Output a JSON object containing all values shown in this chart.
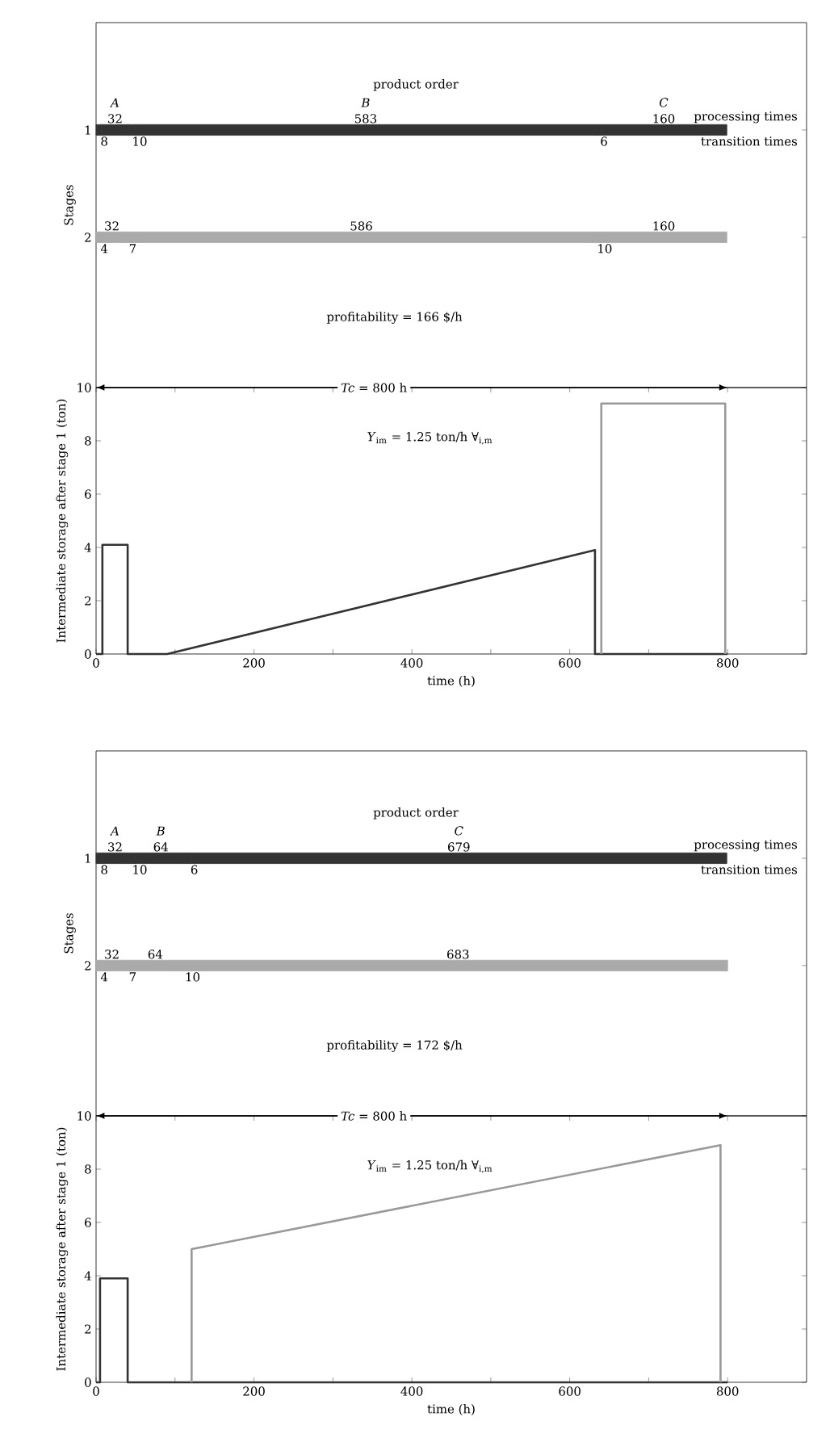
{
  "chart_data": [
    {
      "type": "bar",
      "orientation": "horizontal",
      "stacked": true,
      "categories": [
        "1",
        "2"
      ],
      "ylabel": "Stages",
      "xlim": [
        0,
        900
      ],
      "tick_labels": "y",
      "data_labels": true,
      "series": [
        {
          "values": [
            8,
            4
          ],
          "colors": [
            "#333333",
            "#aaaaaa"
          ]
        },
        {
          "name": "A",
          "values": [
            32,
            32
          ],
          "colors": [
            "#333333",
            "#aaaaaa"
          ]
        },
        {
          "values": [
            10,
            7
          ],
          "colors": [
            "#333333",
            "#aaaaaa"
          ]
        },
        {
          "name": "B",
          "values": [
            583,
            586
          ],
          "colors": [
            "#333333",
            "#aaaaaa"
          ]
        },
        {
          "values": [
            6,
            10
          ],
          "colors": [
            "#333333",
            "#aaaaaa"
          ]
        },
        {
          "name": "C",
          "values": [
            160,
            160
          ],
          "colors": [
            "#333333",
            "#aaaaaa"
          ]
        }
      ],
      "annotations": [
        "product order",
        "processing times",
        "transition times",
        "profitability = 166 $/h"
      ]
    },
    {
      "type": "line",
      "xlabel": "time (h)",
      "ylabel": "Intermediate storage after stage 1 (ton)",
      "xlim": [
        0,
        900
      ],
      "xticks": [
        0,
        {
          "value": 100,
          "label": null
        },
        200,
        {
          "value": 300,
          "label": null
        },
        400,
        {
          "value": 500,
          "label": null
        },
        600,
        {
          "value": 700,
          "label": null
        },
        800
      ],
      "ylim": [
        0,
        10
      ],
      "yticks": [
        0,
        2,
        4,
        6,
        8,
        10
      ],
      "series": [
        {
          "color": "#333333",
          "x": [
            0,
            8,
            8,
            40,
            40,
            90,
            632,
            632,
            800
          ],
          "values": [
            0,
            0,
            4.1,
            4.1,
            0,
            0,
            3.9,
            0,
            0
          ]
        },
        {
          "color": "#999999",
          "x": [
            640,
            640,
            797,
            797
          ],
          "values": [
            0,
            9.4,
            9.4,
            0
          ]
        }
      ],
      "annotations": [
        "*Tc* = 800 h",
        "*Y*$_{im}$ = 1.25 ton/h  ∀$_{i,m}$"
      ]
    },
    {
      "type": "bar",
      "orientation": "horizontal",
      "stacked": true,
      "categories": [
        "1",
        "2"
      ],
      "ylabel": "Stages",
      "xlim": [
        0,
        900
      ],
      "tick_labels": "y",
      "data_labels": true,
      "series": [
        {
          "values": [
            8,
            4
          ],
          "colors": [
            "#333333",
            "#aaaaaa"
          ]
        },
        {
          "name": "A",
          "values": [
            32,
            32
          ],
          "colors": [
            "#333333",
            "#aaaaaa"
          ]
        },
        {
          "values": [
            10,
            7
          ],
          "colors": [
            "#333333",
            "#aaaaaa"
          ]
        },
        {
          "name": "B",
          "values": [
            64,
            64
          ],
          "colors": [
            "#333333",
            "#aaaaaa"
          ]
        },
        {
          "values": [
            6,
            10
          ],
          "colors": [
            "#333333",
            "#aaaaaa"
          ]
        },
        {
          "name": "C",
          "values": [
            679,
            683
          ],
          "colors": [
            "#333333",
            "#aaaaaa"
          ]
        }
      ],
      "annotations": [
        "product order",
        "processing times",
        "transition times",
        "profitability = 172 $/h"
      ]
    },
    {
      "type": "line",
      "xlabel": "time (h)",
      "ylabel": "Intermediate storage after stage 1 (ton)",
      "xlim": [
        0,
        900
      ],
      "xticks": [
        0,
        {
          "value": 100,
          "label": null
        },
        200,
        {
          "value": 300,
          "label": null
        },
        400,
        {
          "value": 500,
          "label": null
        },
        600,
        {
          "value": 700,
          "label": null
        },
        800
      ],
      "ylim": [
        0,
        10
      ],
      "yticks": [
        0,
        2,
        4,
        6,
        8,
        10
      ],
      "series": [
        {
          "color": "#333333",
          "x": [
            0,
            5,
            5,
            40,
            40,
            800
          ],
          "values": [
            0,
            0,
            3.9,
            3.9,
            0,
            0
          ]
        },
        {
          "color": "#999999",
          "x": [
            121,
            121,
            791,
            791
          ],
          "values": [
            0,
            5.0,
            8.9,
            0
          ]
        }
      ],
      "annotations": [
        "*Tc* = 800 h",
        "*Y*$_{im}$ = 1.25 ton/h  ∀$_{i,m}$"
      ]
    }
  ]
}
